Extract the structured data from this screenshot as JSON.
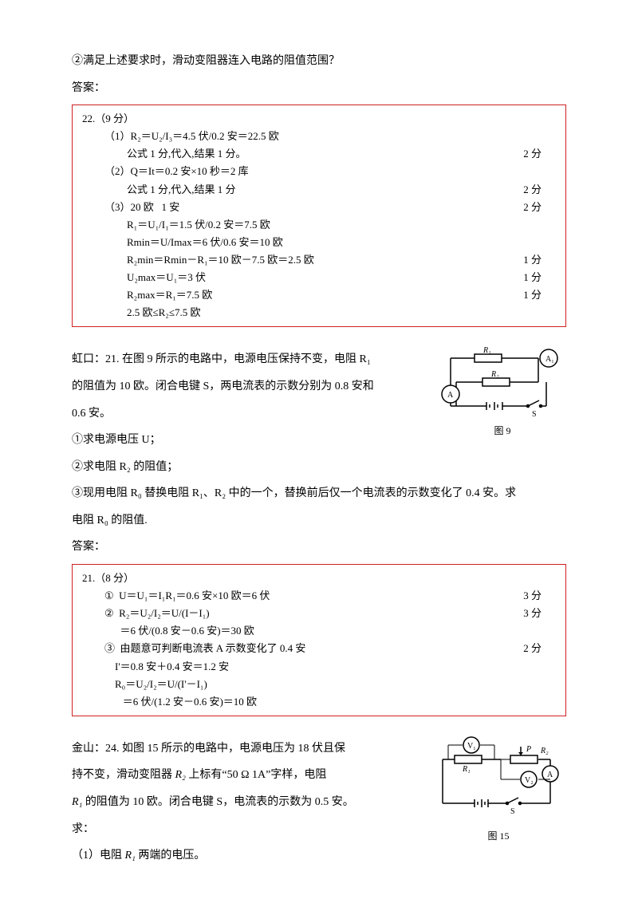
{
  "top_q": "②满足上述要求时，滑动变阻器连入电路的阻值范围？",
  "ans_label": "答案：",
  "box1": {
    "header": "22.（9 分）",
    "lines": [
      {
        "l": "（1）R₂＝U₂/I₃＝4.5 伏/0.2 安＝22.5 欧",
        "p": ""
      },
      {
        "l": "公式 1 分,代入,结果 1 分。",
        "p": "2 分",
        "cls": "indent2"
      },
      {
        "l": "（2）Q＝It＝0.2 安×10 秒＝2 库",
        "p": ""
      },
      {
        "l": "公式 1 分,代入,结果 1 分",
        "p": "2 分",
        "cls": "indent2"
      },
      {
        "l": "（3）20 欧   1 安",
        "p": "2 分"
      },
      {
        "l": "R₁＝U₁/I₁＝1.5 伏/0.2 安＝7.5 欧",
        "p": "",
        "cls": "indent2"
      },
      {
        "l": "Rmin＝U/Imax＝6 伏/0.6 安＝10 欧",
        "p": "",
        "cls": "indent2"
      },
      {
        "l": "R₂min＝Rmin－R₁＝10 欧－7.5 欧＝2.5 欧",
        "p": "1 分",
        "cls": "indent2"
      },
      {
        "l": "U₂max＝U₁＝3 伏",
        "p": "1 分",
        "cls": "indent2"
      },
      {
        "l": "R₂max＝R₁＝7.5 欧",
        "p": "1 分",
        "cls": "indent2"
      },
      {
        "l": "2.5 欧≤R₂≤7.5 欧",
        "p": "",
        "cls": "indent2"
      }
    ]
  },
  "hk": {
    "p1": "虹口：21. 在图 9 所示的电路中，电源电压保持不变，电阻 R₁",
    "p2": "的阻值为 10 欧。闭合电键 S，两电流表的示数分别为 0.8 安和",
    "p3": "0.6 安。",
    "p4": "①求电源电压 U；",
    "p5": "②求电阻 R₂ 的阻值；",
    "p6": "③现用电阻 R₀ 替换电阻 R₁、R₂ 中的一个，替换前后仅一个电流表的示数变化了 0.4 安。求",
    "p7": "电阻 R₀ 的阻值.",
    "fig_caption": "图 9"
  },
  "box2": {
    "header": "21.（8 分）",
    "lines": [
      {
        "l": "①  U＝U₁＝I₁R₁＝0.6 安×10 欧＝6 伏",
        "p": "3 分",
        "cls": "indent1"
      },
      {
        "l": "②  R₂＝U₂/I₂＝U/(I－I₁)",
        "p": "3 分",
        "cls": "indent1"
      },
      {
        "l": "      ＝6 伏/(0.8 安－0.6 安)＝30 欧",
        "p": "",
        "cls": "indent1"
      },
      {
        "l": "③  由题意可判断电流表 A 示数变化了 0.4 安",
        "p": "2 分",
        "cls": "indent1"
      },
      {
        "l": "    I'＝0.8 安＋0.4 安＝1.2 安",
        "p": "",
        "cls": "indent1"
      },
      {
        "l": "    R₀＝U₂/I₂＝U/(I'－I₁)",
        "p": "",
        "cls": "indent1"
      },
      {
        "l": "       ＝6 伏/(1.2 安－0.6 安)＝10 欧",
        "p": "",
        "cls": "indent1"
      }
    ]
  },
  "js": {
    "p1a": "金山：24. 如图 15 所示的电路中，电源电压为 18 伏且保",
    "p1b": "持不变，滑动变阻器 ",
    "p1c": " 上标有“50 Ω   1A”字样，电阻",
    "p2a": "",
    "p2b": " 的阻值为 10 欧。闭合电键 S，电流表的示数为 0.5 安。",
    "p3": "求：",
    "p4": "（1）电阻 ",
    "p4b": " 两端的电压。",
    "R1": "R₁",
    "R2": "R₂",
    "fig_caption": "图 15"
  },
  "svg": {
    "stroke": "#000000",
    "fill": "#ffffff"
  }
}
